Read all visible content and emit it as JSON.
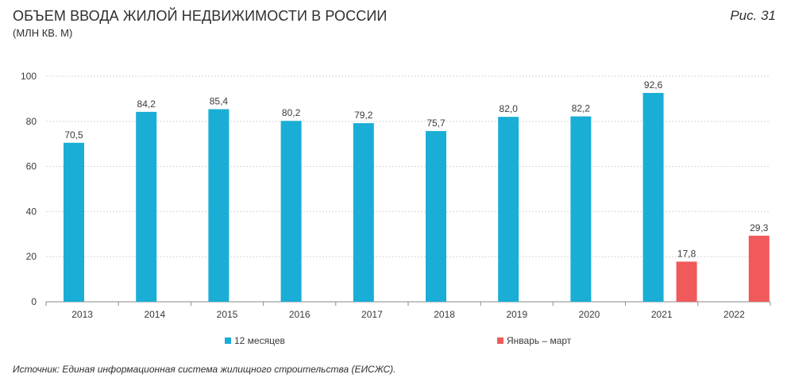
{
  "header": {
    "title": "ОБЪЕМ ВВОДА ЖИЛОЙ НЕДВИЖИМОСТИ В РОССИИ",
    "subtitle": "(МЛН КВ. М)",
    "figure_label": "Рис. 31"
  },
  "footer": {
    "source": "Источник: Единая информационная система жилищного строительства (ЕИСЖС)."
  },
  "chart_data": {
    "type": "bar",
    "categories": [
      "2013",
      "2014",
      "2015",
      "2016",
      "2017",
      "2018",
      "2019",
      "2020",
      "2021",
      "2022"
    ],
    "series": [
      {
        "name": "12 месяцев",
        "color": "#1aaed6",
        "values": [
          70.5,
          84.2,
          85.4,
          80.2,
          79.2,
          75.7,
          82.0,
          82.2,
          92.6,
          null
        ],
        "labels": [
          "70,5",
          "84,2",
          "85,4",
          "80,2",
          "79,2",
          "75,7",
          "82,0",
          "82,2",
          "92,6",
          ""
        ]
      },
      {
        "name": "Январь – март",
        "color": "#f05a5a",
        "values": [
          null,
          null,
          null,
          null,
          null,
          null,
          null,
          null,
          17.8,
          29.3
        ],
        "labels": [
          "",
          "",
          "",
          "",
          "",
          "",
          "",
          "",
          "17,8",
          "29,3"
        ]
      }
    ],
    "ylim": [
      0,
      100
    ],
    "yticks": [
      0,
      20,
      40,
      60,
      80,
      100
    ],
    "ytick_labels": [
      "0",
      "20",
      "40",
      "60",
      "80",
      "100"
    ],
    "grid": true,
    "legend_position": "bottom"
  }
}
